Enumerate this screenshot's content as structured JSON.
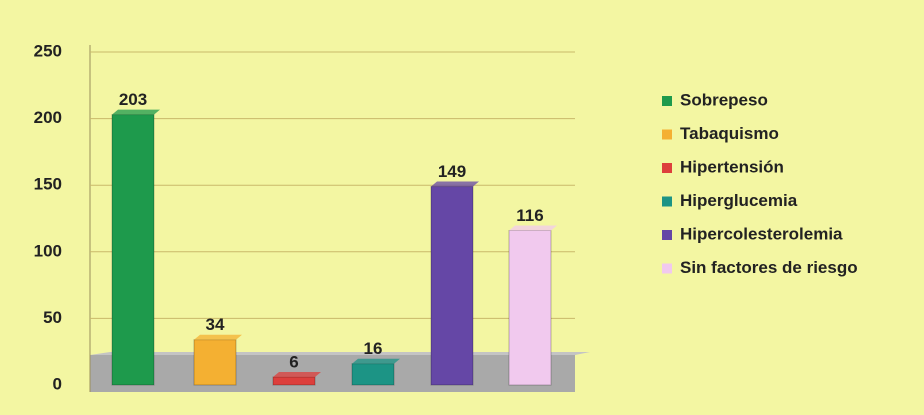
{
  "chart_data": {
    "type": "bar",
    "series": [
      {
        "name": "Sobrepeso",
        "color": "#1e9a4c",
        "values": [
          203
        ]
      },
      {
        "name": "Tabaquismo",
        "color": "#f4b032",
        "values": [
          34
        ]
      },
      {
        "name": "Hipertensión",
        "color": "#dd3f3c",
        "values": [
          6
        ]
      },
      {
        "name": "Hiperglucemia",
        "color": "#1c9485",
        "values": [
          16
        ]
      },
      {
        "name": "Hipercolesterolemia",
        "color": "#6547a6",
        "values": [
          149
        ]
      },
      {
        "name": "Sin factores de riesgo",
        "color": "#f1c9ee",
        "values": [
          116
        ]
      }
    ],
    "ylim": [
      0,
      250
    ],
    "yticks": [
      0,
      50,
      100,
      150,
      200,
      250
    ],
    "grid": true,
    "legend": "right"
  }
}
